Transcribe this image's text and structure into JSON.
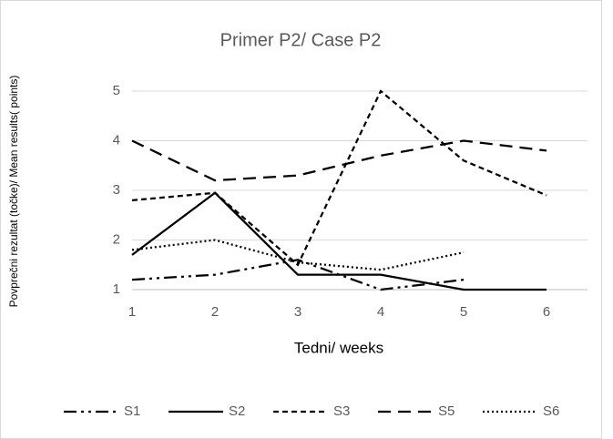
{
  "chart_data": {
    "type": "line",
    "title": "Primer P2/ Case P2",
    "x_label": "Tedni/ weeks",
    "y_label": "Povprečni rezultat (točke)/ Mean results( points)",
    "categories": [
      "1",
      "2",
      "3",
      "4",
      "5",
      "6"
    ],
    "series": [
      {
        "name": "S1",
        "color": "#000000",
        "values": [
          1.2,
          1.3,
          1.6,
          1.0,
          1.2,
          null
        ]
      },
      {
        "name": "S2",
        "color": "#000000",
        "values": [
          1.7,
          2.95,
          1.3,
          1.3,
          1.0,
          1.0
        ]
      },
      {
        "name": "S3",
        "color": "#000000",
        "values": [
          2.8,
          2.95,
          1.5,
          5.0,
          3.6,
          2.9
        ]
      },
      {
        "name": "S5",
        "color": "#000000",
        "values": [
          4.0,
          3.2,
          3.3,
          3.7,
          4.0,
          3.8
        ]
      },
      {
        "name": "S6",
        "color": "#000000",
        "values": [
          1.8,
          2.0,
          1.55,
          1.4,
          1.75,
          null
        ]
      }
    ],
    "ylim": [
      1,
      5
    ],
    "yticks": [
      1,
      2,
      3,
      4,
      5
    ],
    "grid": true,
    "legend": "bottom"
  }
}
